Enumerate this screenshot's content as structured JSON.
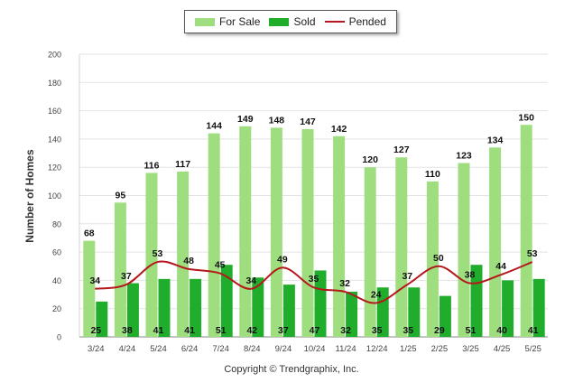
{
  "chart_data": {
    "type": "bar",
    "ylabel": "Number of Homes",
    "ylim": [
      0,
      200
    ],
    "yticks": [
      0,
      20,
      40,
      60,
      80,
      100,
      120,
      140,
      160,
      180,
      200
    ],
    "grid": true,
    "legend_position": "top",
    "categories": [
      "3/24",
      "4/24",
      "5/24",
      "6/24",
      "7/24",
      "8/24",
      "9/24",
      "10/24",
      "11/24",
      "12/24",
      "1/25",
      "2/25",
      "3/25",
      "4/25",
      "5/25"
    ],
    "series": [
      {
        "name": "For Sale",
        "kind": "bar",
        "color": "#9ede7f",
        "values": [
          68,
          95,
          116,
          117,
          144,
          149,
          148,
          147,
          142,
          120,
          127,
          110,
          123,
          134,
          150
        ]
      },
      {
        "name": "Sold",
        "kind": "bar",
        "color": "#21ad2c",
        "values": [
          25,
          38,
          41,
          41,
          51,
          42,
          37,
          47,
          32,
          35,
          35,
          29,
          51,
          40,
          41
        ]
      },
      {
        "name": "Pended",
        "kind": "line",
        "color": "#b5171c",
        "values": [
          34,
          37,
          53,
          48,
          45,
          34,
          49,
          35,
          32,
          24,
          37,
          50,
          38,
          44,
          53
        ]
      }
    ]
  },
  "footer": {
    "copyright": "Copyright © Trendgraphix, Inc."
  }
}
